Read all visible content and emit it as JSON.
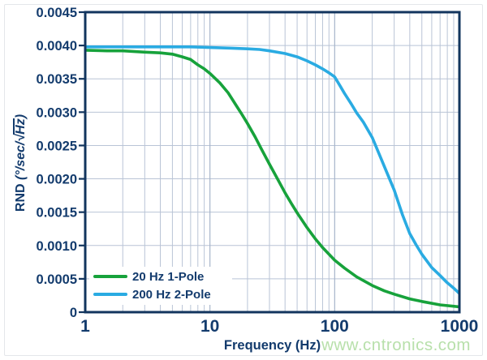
{
  "page": {
    "watermark": "www.cntronics.com",
    "watermark_color": "#b8e0ab"
  },
  "chart_data": {
    "type": "line",
    "title": "",
    "xlabel": "Frequency (Hz)",
    "ylabel": "RND (°/sec/√Hz)",
    "ylabel_parts": {
      "name": "RND",
      "open": " (",
      "unit": "°/sec/",
      "radical": "√",
      "radicand": "Hz",
      "close": ")"
    },
    "x_scale": "log",
    "xlim": [
      1,
      1000
    ],
    "ylim": [
      0,
      0.0045
    ],
    "grid": true,
    "x_major_ticks": [
      1,
      10,
      100,
      1000
    ],
    "x_major_tick_labels": [
      "1",
      "10",
      "100",
      "1000"
    ],
    "x_minor_ticks": [
      2,
      3,
      4,
      5,
      6,
      7,
      8,
      9,
      20,
      30,
      40,
      50,
      60,
      70,
      80,
      90,
      200,
      300,
      400,
      500,
      600,
      700,
      800,
      900
    ],
    "y_ticks": [
      0,
      0.0005,
      0.001,
      0.0015,
      0.002,
      0.0025,
      0.003,
      0.0035,
      0.004,
      0.0045
    ],
    "y_tick_labels": [
      "0",
      "0.0005",
      "0.0010",
      "0.0015",
      "0.0020",
      "0.0025",
      "0.0030",
      "0.0035",
      "0.0040",
      "0.0045"
    ],
    "legend_position": "bottom-left",
    "colors": {
      "frame": "#12355e",
      "text": "#133b6d",
      "grid_minor": "#b9c4d6",
      "grid_major": "#a6b5ca",
      "background": "#ffffff"
    },
    "series": [
      {
        "name": "20 Hz 1-Pole",
        "color": "#17a23b",
        "points": [
          [
            1,
            0.00393
          ],
          [
            1.5,
            0.00392
          ],
          [
            2,
            0.00392
          ],
          [
            3,
            0.0039
          ],
          [
            4,
            0.00389
          ],
          [
            5,
            0.00387
          ],
          [
            6,
            0.00383
          ],
          [
            7,
            0.00379
          ],
          [
            8,
            0.00371
          ],
          [
            9,
            0.00365
          ],
          [
            10,
            0.00358
          ],
          [
            12,
            0.00344
          ],
          [
            14,
            0.00329
          ],
          [
            16,
            0.00312
          ],
          [
            18,
            0.00297
          ],
          [
            20,
            0.00283
          ],
          [
            23,
            0.00263
          ],
          [
            26,
            0.00244
          ],
          [
            30,
            0.00222
          ],
          [
            35,
            0.00199
          ],
          [
            40,
            0.00179
          ],
          [
            45,
            0.00163
          ],
          [
            50,
            0.00149
          ],
          [
            60,
            0.00127
          ],
          [
            70,
            0.0011
          ],
          [
            80,
            0.00097
          ],
          [
            100,
            0.00078
          ],
          [
            120,
            0.00066
          ],
          [
            150,
            0.00053
          ],
          [
            200,
            0.0004
          ],
          [
            250,
            0.00032
          ],
          [
            300,
            0.00027
          ],
          [
            400,
            0.0002
          ],
          [
            500,
            0.00016
          ],
          [
            700,
            0.00011
          ],
          [
            1000,
            8e-05
          ]
        ]
      },
      {
        "name": "200 Hz 2-Pole",
        "color": "#2aabe2",
        "points": [
          [
            1,
            0.00398
          ],
          [
            2,
            0.00398
          ],
          [
            4,
            0.00398
          ],
          [
            7,
            0.00398
          ],
          [
            10,
            0.00397
          ],
          [
            15,
            0.00396
          ],
          [
            20,
            0.00395
          ],
          [
            25,
            0.00394
          ],
          [
            30,
            0.00392
          ],
          [
            40,
            0.00388
          ],
          [
            50,
            0.00383
          ],
          [
            60,
            0.00377
          ],
          [
            70,
            0.00371
          ],
          [
            80,
            0.00365
          ],
          [
            90,
            0.00359
          ],
          [
            100,
            0.00353
          ],
          [
            110,
            0.0034
          ],
          [
            120,
            0.00328
          ],
          [
            135,
            0.00313
          ],
          [
            150,
            0.00299
          ],
          [
            170,
            0.00285
          ],
          [
            200,
            0.00262
          ],
          [
            230,
            0.00235
          ],
          [
            260,
            0.00211
          ],
          [
            300,
            0.00183
          ],
          [
            350,
            0.00146
          ],
          [
            400,
            0.00118
          ],
          [
            450,
            0.00101
          ],
          [
            500,
            0.00087
          ],
          [
            600,
            0.00067
          ],
          [
            700,
            0.00055
          ],
          [
            800,
            0.00044
          ],
          [
            900,
            0.00036
          ],
          [
            1000,
            0.00028
          ]
        ]
      }
    ]
  }
}
